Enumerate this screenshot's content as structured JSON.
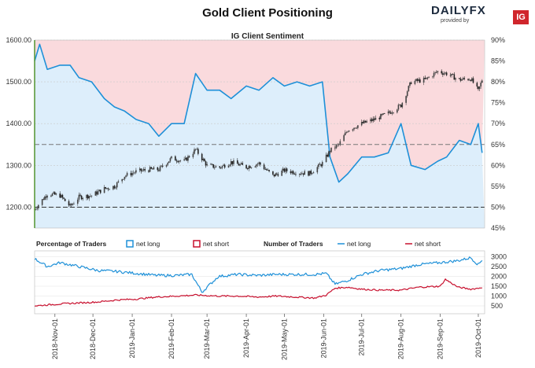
{
  "title": "Gold Client Positioning",
  "brand": {
    "name": "DAILYFX",
    "tagline": "provided by",
    "mark": "IG"
  },
  "chart_data": [
    {
      "type": "line",
      "title": "IG Client Sentiment",
      "y_left": {
        "ticks": [
          "1200.00",
          "1300.00",
          "1400.00",
          "1500.00",
          "1600.00"
        ],
        "ylim": [
          1150,
          1600
        ]
      },
      "y_right": {
        "ticks": [
          "45%",
          "50%",
          "55%",
          "60%",
          "65%",
          "70%",
          "75%",
          "80%",
          "85%",
          "90%"
        ],
        "ylim": [
          45,
          90
        ]
      },
      "reference_lines": {
        "price": 1200,
        "sentiment_pct": 65
      },
      "series": [
        {
          "name": "Gold price",
          "style": "candlestick",
          "x": [
            "2018-10-16",
            "2018-10-26",
            "2018-11-05",
            "2018-11-13",
            "2018-11-20",
            "2018-11-30",
            "2018-12-10",
            "2018-12-18",
            "2018-12-26",
            "2019-01-04",
            "2019-01-14",
            "2019-01-22",
            "2019-02-01",
            "2019-02-11",
            "2019-02-20",
            "2019-03-01",
            "2019-03-11",
            "2019-03-20",
            "2019-04-01",
            "2019-04-11",
            "2019-04-22",
            "2019-05-01",
            "2019-05-11",
            "2019-05-21",
            "2019-05-31",
            "2019-06-06",
            "2019-06-13",
            "2019-06-20",
            "2019-07-01",
            "2019-07-11",
            "2019-07-22",
            "2019-08-01",
            "2019-08-09",
            "2019-08-20",
            "2019-08-30",
            "2019-09-06",
            "2019-09-16",
            "2019-09-25",
            "2019-10-01",
            "2019-10-04"
          ],
          "values": [
            1195,
            1232,
            1228,
            1202,
            1224,
            1228,
            1244,
            1250,
            1275,
            1285,
            1290,
            1290,
            1317,
            1310,
            1338,
            1300,
            1295,
            1308,
            1296,
            1305,
            1275,
            1288,
            1283,
            1281,
            1305,
            1335,
            1350,
            1385,
            1400,
            1410,
            1425,
            1444,
            1500,
            1505,
            1525,
            1520,
            1505,
            1508,
            1478,
            1505
          ]
        },
        {
          "name": "net long",
          "axis": "right",
          "x": [
            "2018-10-16",
            "2018-10-20",
            "2018-10-26",
            "2018-11-05",
            "2018-11-13",
            "2018-11-20",
            "2018-11-30",
            "2018-12-10",
            "2018-12-18",
            "2018-12-26",
            "2019-01-04",
            "2019-01-14",
            "2019-01-22",
            "2019-02-01",
            "2019-02-11",
            "2019-02-20",
            "2019-03-01",
            "2019-03-11",
            "2019-03-20",
            "2019-04-01",
            "2019-04-11",
            "2019-04-22",
            "2019-05-01",
            "2019-05-11",
            "2019-05-21",
            "2019-05-31",
            "2019-06-06",
            "2019-06-13",
            "2019-06-20",
            "2019-07-01",
            "2019-07-11",
            "2019-07-22",
            "2019-08-01",
            "2019-08-09",
            "2019-08-20",
            "2019-08-30",
            "2019-09-06",
            "2019-09-16",
            "2019-09-25",
            "2019-10-01",
            "2019-10-04"
          ],
          "values": [
            85,
            89,
            83,
            84,
            84,
            81,
            80,
            76,
            74,
            73,
            71,
            70,
            67,
            70,
            70,
            82,
            78,
            78,
            76,
            79,
            78,
            81,
            79,
            80,
            79,
            80,
            62,
            56,
            58,
            62,
            62,
            63,
            70,
            60,
            59,
            61,
            62,
            66,
            65,
            70,
            63
          ]
        }
      ]
    },
    {
      "type": "line",
      "title": "",
      "legend_left": {
        "title": "Percentage of Traders",
        "items": [
          {
            "name": "net long",
            "color": "#1e90d8"
          },
          {
            "name": "net short",
            "color": "#c8102e"
          }
        ]
      },
      "legend_right": {
        "title": "Number of Traders",
        "items": [
          {
            "name": "net long",
            "color": "#1e90d8"
          },
          {
            "name": "net short",
            "color": "#c8102e"
          }
        ]
      },
      "y_right": {
        "ticks": [
          "500",
          "1000",
          "1500",
          "2000",
          "2500",
          "3000"
        ],
        "ylim": [
          100,
          3300
        ]
      },
      "categories": [
        "2018-Nov-01",
        "2018-Dec-01",
        "2019-Jan-01",
        "2019-Feb-01",
        "2019-Mar-01",
        "2019-Apr-01",
        "2019-May-01",
        "2019-Jun-01",
        "2019-Jul-01",
        "2019-Aug-01",
        "2019-Sep-01",
        "2019-Oct-01"
      ],
      "series": [
        {
          "name": "net long",
          "x": [
            "2018-10-16",
            "2018-10-26",
            "2018-11-05",
            "2018-11-20",
            "2018-12-05",
            "2018-12-20",
            "2019-01-05",
            "2019-01-20",
            "2019-02-05",
            "2019-02-17",
            "2019-02-25",
            "2019-03-10",
            "2019-03-25",
            "2019-04-10",
            "2019-04-25",
            "2019-05-10",
            "2019-05-25",
            "2019-06-03",
            "2019-06-10",
            "2019-06-20",
            "2019-07-01",
            "2019-07-15",
            "2019-08-01",
            "2019-08-15",
            "2019-09-01",
            "2019-09-15",
            "2019-09-25",
            "2019-10-01",
            "2019-10-04"
          ],
          "values": [
            2900,
            2500,
            2700,
            2500,
            2300,
            2250,
            2150,
            2050,
            2050,
            2100,
            1200,
            2000,
            2100,
            2050,
            2100,
            2100,
            2100,
            2150,
            1600,
            1800,
            2100,
            2300,
            2400,
            2600,
            2700,
            2800,
            2950,
            2600,
            2850
          ]
        },
        {
          "name": "net short",
          "x": [
            "2018-10-16",
            "2018-10-26",
            "2018-11-05",
            "2018-11-20",
            "2018-12-05",
            "2018-12-20",
            "2019-01-05",
            "2019-01-20",
            "2019-02-05",
            "2019-02-20",
            "2019-03-10",
            "2019-03-25",
            "2019-04-10",
            "2019-04-25",
            "2019-05-10",
            "2019-05-25",
            "2019-06-03",
            "2019-06-10",
            "2019-06-20",
            "2019-07-01",
            "2019-07-15",
            "2019-08-01",
            "2019-08-15",
            "2019-09-01",
            "2019-09-05",
            "2019-09-15",
            "2019-09-25",
            "2019-10-01",
            "2019-10-04"
          ],
          "values": [
            500,
            550,
            600,
            650,
            700,
            800,
            850,
            950,
            1000,
            1050,
            1000,
            1000,
            950,
            1000,
            950,
            900,
            1050,
            1400,
            1450,
            1350,
            1300,
            1300,
            1450,
            1500,
            1850,
            1450,
            1350,
            1400,
            1450
          ]
        }
      ]
    }
  ]
}
